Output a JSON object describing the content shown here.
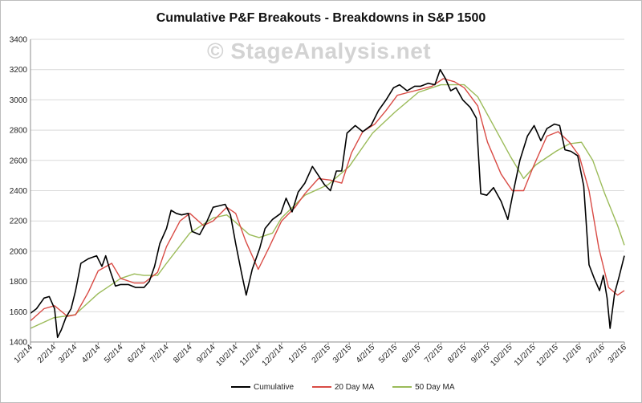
{
  "chart_data": {
    "type": "line",
    "title": "Cumulative P&F Breakouts - Breakdowns in S&P 1500",
    "watermark": "© StageAnalysis.net",
    "xlabel": "",
    "ylabel": "",
    "ylim": [
      1400,
      3400
    ],
    "yticks": [
      1400,
      1600,
      1800,
      2000,
      2200,
      2400,
      2600,
      2800,
      3000,
      3200,
      3400
    ],
    "xlim": [
      "2014-01-02",
      "2016-03-02"
    ],
    "xticks": [
      "1/2/14",
      "2/2/14",
      "3/2/14",
      "4/2/14",
      "5/2/14",
      "6/2/14",
      "7/2/14",
      "8/2/14",
      "9/2/14",
      "10/2/14",
      "11/2/14",
      "12/2/14",
      "1/2/15",
      "2/2/15",
      "3/2/15",
      "4/2/15",
      "5/2/15",
      "6/2/15",
      "7/2/15",
      "8/2/15",
      "9/2/15",
      "10/2/15",
      "11/2/15",
      "12/2/15",
      "1/2/16",
      "2/2/16",
      "3/2/16"
    ],
    "grid": "horizontal",
    "legend_position": "bottom",
    "series": [
      {
        "name": "Cumulative",
        "color": "#000000",
        "points": [
          [
            "2014-01-02",
            1590
          ],
          [
            "2014-01-10",
            1620
          ],
          [
            "2014-01-20",
            1690
          ],
          [
            "2014-01-27",
            1700
          ],
          [
            "2014-02-03",
            1620
          ],
          [
            "2014-02-07",
            1430
          ],
          [
            "2014-02-12",
            1480
          ],
          [
            "2014-02-18",
            1560
          ],
          [
            "2014-02-25",
            1620
          ],
          [
            "2014-03-03",
            1740
          ],
          [
            "2014-03-10",
            1920
          ],
          [
            "2014-03-20",
            1950
          ],
          [
            "2014-03-31",
            1970
          ],
          [
            "2014-04-07",
            1900
          ],
          [
            "2014-04-12",
            1970
          ],
          [
            "2014-04-18",
            1870
          ],
          [
            "2014-04-25",
            1770
          ],
          [
            "2014-05-02",
            1780
          ],
          [
            "2014-05-12",
            1780
          ],
          [
            "2014-05-22",
            1760
          ],
          [
            "2014-06-02",
            1760
          ],
          [
            "2014-06-09",
            1800
          ],
          [
            "2014-06-16",
            1900
          ],
          [
            "2014-06-23",
            2050
          ],
          [
            "2014-07-02",
            2150
          ],
          [
            "2014-07-08",
            2270
          ],
          [
            "2014-07-15",
            2250
          ],
          [
            "2014-07-22",
            2240
          ],
          [
            "2014-07-31",
            2250
          ],
          [
            "2014-08-05",
            2130
          ],
          [
            "2014-08-15",
            2110
          ],
          [
            "2014-08-25",
            2200
          ],
          [
            "2014-09-02",
            2290
          ],
          [
            "2014-09-10",
            2300
          ],
          [
            "2014-09-18",
            2310
          ],
          [
            "2014-09-25",
            2240
          ],
          [
            "2014-10-02",
            2050
          ],
          [
            "2014-10-10",
            1850
          ],
          [
            "2014-10-16",
            1710
          ],
          [
            "2014-10-24",
            1880
          ],
          [
            "2014-11-03",
            2020
          ],
          [
            "2014-11-10",
            2150
          ],
          [
            "2014-11-20",
            2210
          ],
          [
            "2014-12-01",
            2250
          ],
          [
            "2014-12-08",
            2350
          ],
          [
            "2014-12-16",
            2260
          ],
          [
            "2014-12-24",
            2390
          ],
          [
            "2015-01-02",
            2450
          ],
          [
            "2015-01-12",
            2560
          ],
          [
            "2015-01-20",
            2500
          ],
          [
            "2015-01-28",
            2440
          ],
          [
            "2015-02-05",
            2400
          ],
          [
            "2015-02-13",
            2530
          ],
          [
            "2015-02-20",
            2530
          ],
          [
            "2015-02-27",
            2780
          ],
          [
            "2015-03-10",
            2830
          ],
          [
            "2015-03-20",
            2790
          ],
          [
            "2015-03-31",
            2830
          ],
          [
            "2015-04-10",
            2930
          ],
          [
            "2015-04-20",
            3000
          ],
          [
            "2015-04-30",
            3080
          ],
          [
            "2015-05-08",
            3100
          ],
          [
            "2015-05-18",
            3060
          ],
          [
            "2015-05-28",
            3090
          ],
          [
            "2015-06-05",
            3090
          ],
          [
            "2015-06-15",
            3110
          ],
          [
            "2015-06-24",
            3100
          ],
          [
            "2015-07-01",
            3200
          ],
          [
            "2015-07-08",
            3140
          ],
          [
            "2015-07-15",
            3060
          ],
          [
            "2015-07-22",
            3080
          ],
          [
            "2015-07-31",
            3000
          ],
          [
            "2015-08-10",
            2950
          ],
          [
            "2015-08-18",
            2880
          ],
          [
            "2015-08-24",
            2380
          ],
          [
            "2015-09-01",
            2370
          ],
          [
            "2015-09-10",
            2420
          ],
          [
            "2015-09-20",
            2330
          ],
          [
            "2015-09-29",
            2210
          ],
          [
            "2015-10-05",
            2360
          ],
          [
            "2015-10-15",
            2600
          ],
          [
            "2015-10-25",
            2760
          ],
          [
            "2015-11-03",
            2830
          ],
          [
            "2015-11-12",
            2730
          ],
          [
            "2015-11-20",
            2810
          ],
          [
            "2015-11-30",
            2840
          ],
          [
            "2015-12-07",
            2830
          ],
          [
            "2015-12-14",
            2670
          ],
          [
            "2015-12-22",
            2660
          ],
          [
            "2015-12-31",
            2630
          ],
          [
            "2016-01-08",
            2430
          ],
          [
            "2016-01-15",
            1910
          ],
          [
            "2016-01-22",
            1820
          ],
          [
            "2016-01-29",
            1740
          ],
          [
            "2016-02-03",
            1840
          ],
          [
            "2016-02-08",
            1690
          ],
          [
            "2016-02-12",
            1490
          ],
          [
            "2016-02-18",
            1720
          ],
          [
            "2016-02-24",
            1830
          ],
          [
            "2016-03-02",
            1970
          ]
        ]
      },
      {
        "name": "20 Day MA",
        "color": "#d94b45",
        "points": [
          [
            "2014-01-02",
            1540
          ],
          [
            "2014-01-20",
            1620
          ],
          [
            "2014-02-03",
            1640
          ],
          [
            "2014-02-20",
            1570
          ],
          [
            "2014-03-03",
            1580
          ],
          [
            "2014-03-20",
            1730
          ],
          [
            "2014-04-02",
            1870
          ],
          [
            "2014-04-20",
            1920
          ],
          [
            "2014-05-02",
            1820
          ],
          [
            "2014-05-20",
            1790
          ],
          [
            "2014-06-02",
            1790
          ],
          [
            "2014-06-20",
            1860
          ],
          [
            "2014-07-02",
            2030
          ],
          [
            "2014-07-20",
            2200
          ],
          [
            "2014-08-02",
            2250
          ],
          [
            "2014-08-20",
            2170
          ],
          [
            "2014-09-02",
            2200
          ],
          [
            "2014-09-20",
            2290
          ],
          [
            "2014-10-02",
            2250
          ],
          [
            "2014-10-15",
            2070
          ],
          [
            "2014-11-01",
            1880
          ],
          [
            "2014-11-15",
            2020
          ],
          [
            "2014-12-02",
            2200
          ],
          [
            "2014-12-20",
            2290
          ],
          [
            "2015-01-02",
            2380
          ],
          [
            "2015-01-20",
            2480
          ],
          [
            "2015-02-05",
            2470
          ],
          [
            "2015-02-20",
            2450
          ],
          [
            "2015-03-05",
            2650
          ],
          [
            "2015-03-20",
            2790
          ],
          [
            "2015-04-05",
            2840
          ],
          [
            "2015-04-20",
            2930
          ],
          [
            "2015-05-05",
            3030
          ],
          [
            "2015-05-20",
            3050
          ],
          [
            "2015-06-05",
            3070
          ],
          [
            "2015-06-20",
            3090
          ],
          [
            "2015-07-05",
            3140
          ],
          [
            "2015-07-20",
            3120
          ],
          [
            "2015-08-02",
            3080
          ],
          [
            "2015-08-20",
            2960
          ],
          [
            "2015-09-02",
            2720
          ],
          [
            "2015-09-20",
            2510
          ],
          [
            "2015-10-05",
            2400
          ],
          [
            "2015-10-20",
            2400
          ],
          [
            "2015-11-02",
            2560
          ],
          [
            "2015-11-20",
            2760
          ],
          [
            "2015-12-05",
            2790
          ],
          [
            "2015-12-20",
            2720
          ],
          [
            "2016-01-02",
            2630
          ],
          [
            "2016-01-15",
            2400
          ],
          [
            "2016-01-28",
            2020
          ],
          [
            "2016-02-10",
            1760
          ],
          [
            "2016-02-22",
            1710
          ],
          [
            "2016-03-02",
            1740
          ]
        ]
      },
      {
        "name": "50 Day MA",
        "color": "#9bbb59",
        "points": [
          [
            "2014-01-02",
            1490
          ],
          [
            "2014-02-02",
            1560
          ],
          [
            "2014-03-02",
            1580
          ],
          [
            "2014-04-02",
            1720
          ],
          [
            "2014-05-02",
            1820
          ],
          [
            "2014-05-20",
            1850
          ],
          [
            "2014-06-02",
            1840
          ],
          [
            "2014-06-20",
            1840
          ],
          [
            "2014-07-02",
            1920
          ],
          [
            "2014-08-02",
            2120
          ],
          [
            "2014-09-02",
            2220
          ],
          [
            "2014-09-20",
            2240
          ],
          [
            "2014-10-02",
            2190
          ],
          [
            "2014-10-20",
            2110
          ],
          [
            "2014-11-02",
            2090
          ],
          [
            "2014-11-20",
            2120
          ],
          [
            "2014-12-02",
            2220
          ],
          [
            "2015-01-02",
            2370
          ],
          [
            "2015-02-02",
            2440
          ],
          [
            "2015-03-02",
            2560
          ],
          [
            "2015-04-02",
            2780
          ],
          [
            "2015-05-02",
            2920
          ],
          [
            "2015-06-02",
            3050
          ],
          [
            "2015-07-02",
            3100
          ],
          [
            "2015-08-02",
            3100
          ],
          [
            "2015-08-20",
            3020
          ],
          [
            "2015-09-10",
            2830
          ],
          [
            "2015-10-02",
            2630
          ],
          [
            "2015-10-20",
            2480
          ],
          [
            "2015-11-05",
            2570
          ],
          [
            "2015-12-02",
            2660
          ],
          [
            "2015-12-20",
            2710
          ],
          [
            "2016-01-05",
            2720
          ],
          [
            "2016-01-20",
            2600
          ],
          [
            "2016-02-05",
            2380
          ],
          [
            "2016-02-22",
            2170
          ],
          [
            "2016-03-02",
            2040
          ]
        ]
      }
    ]
  }
}
